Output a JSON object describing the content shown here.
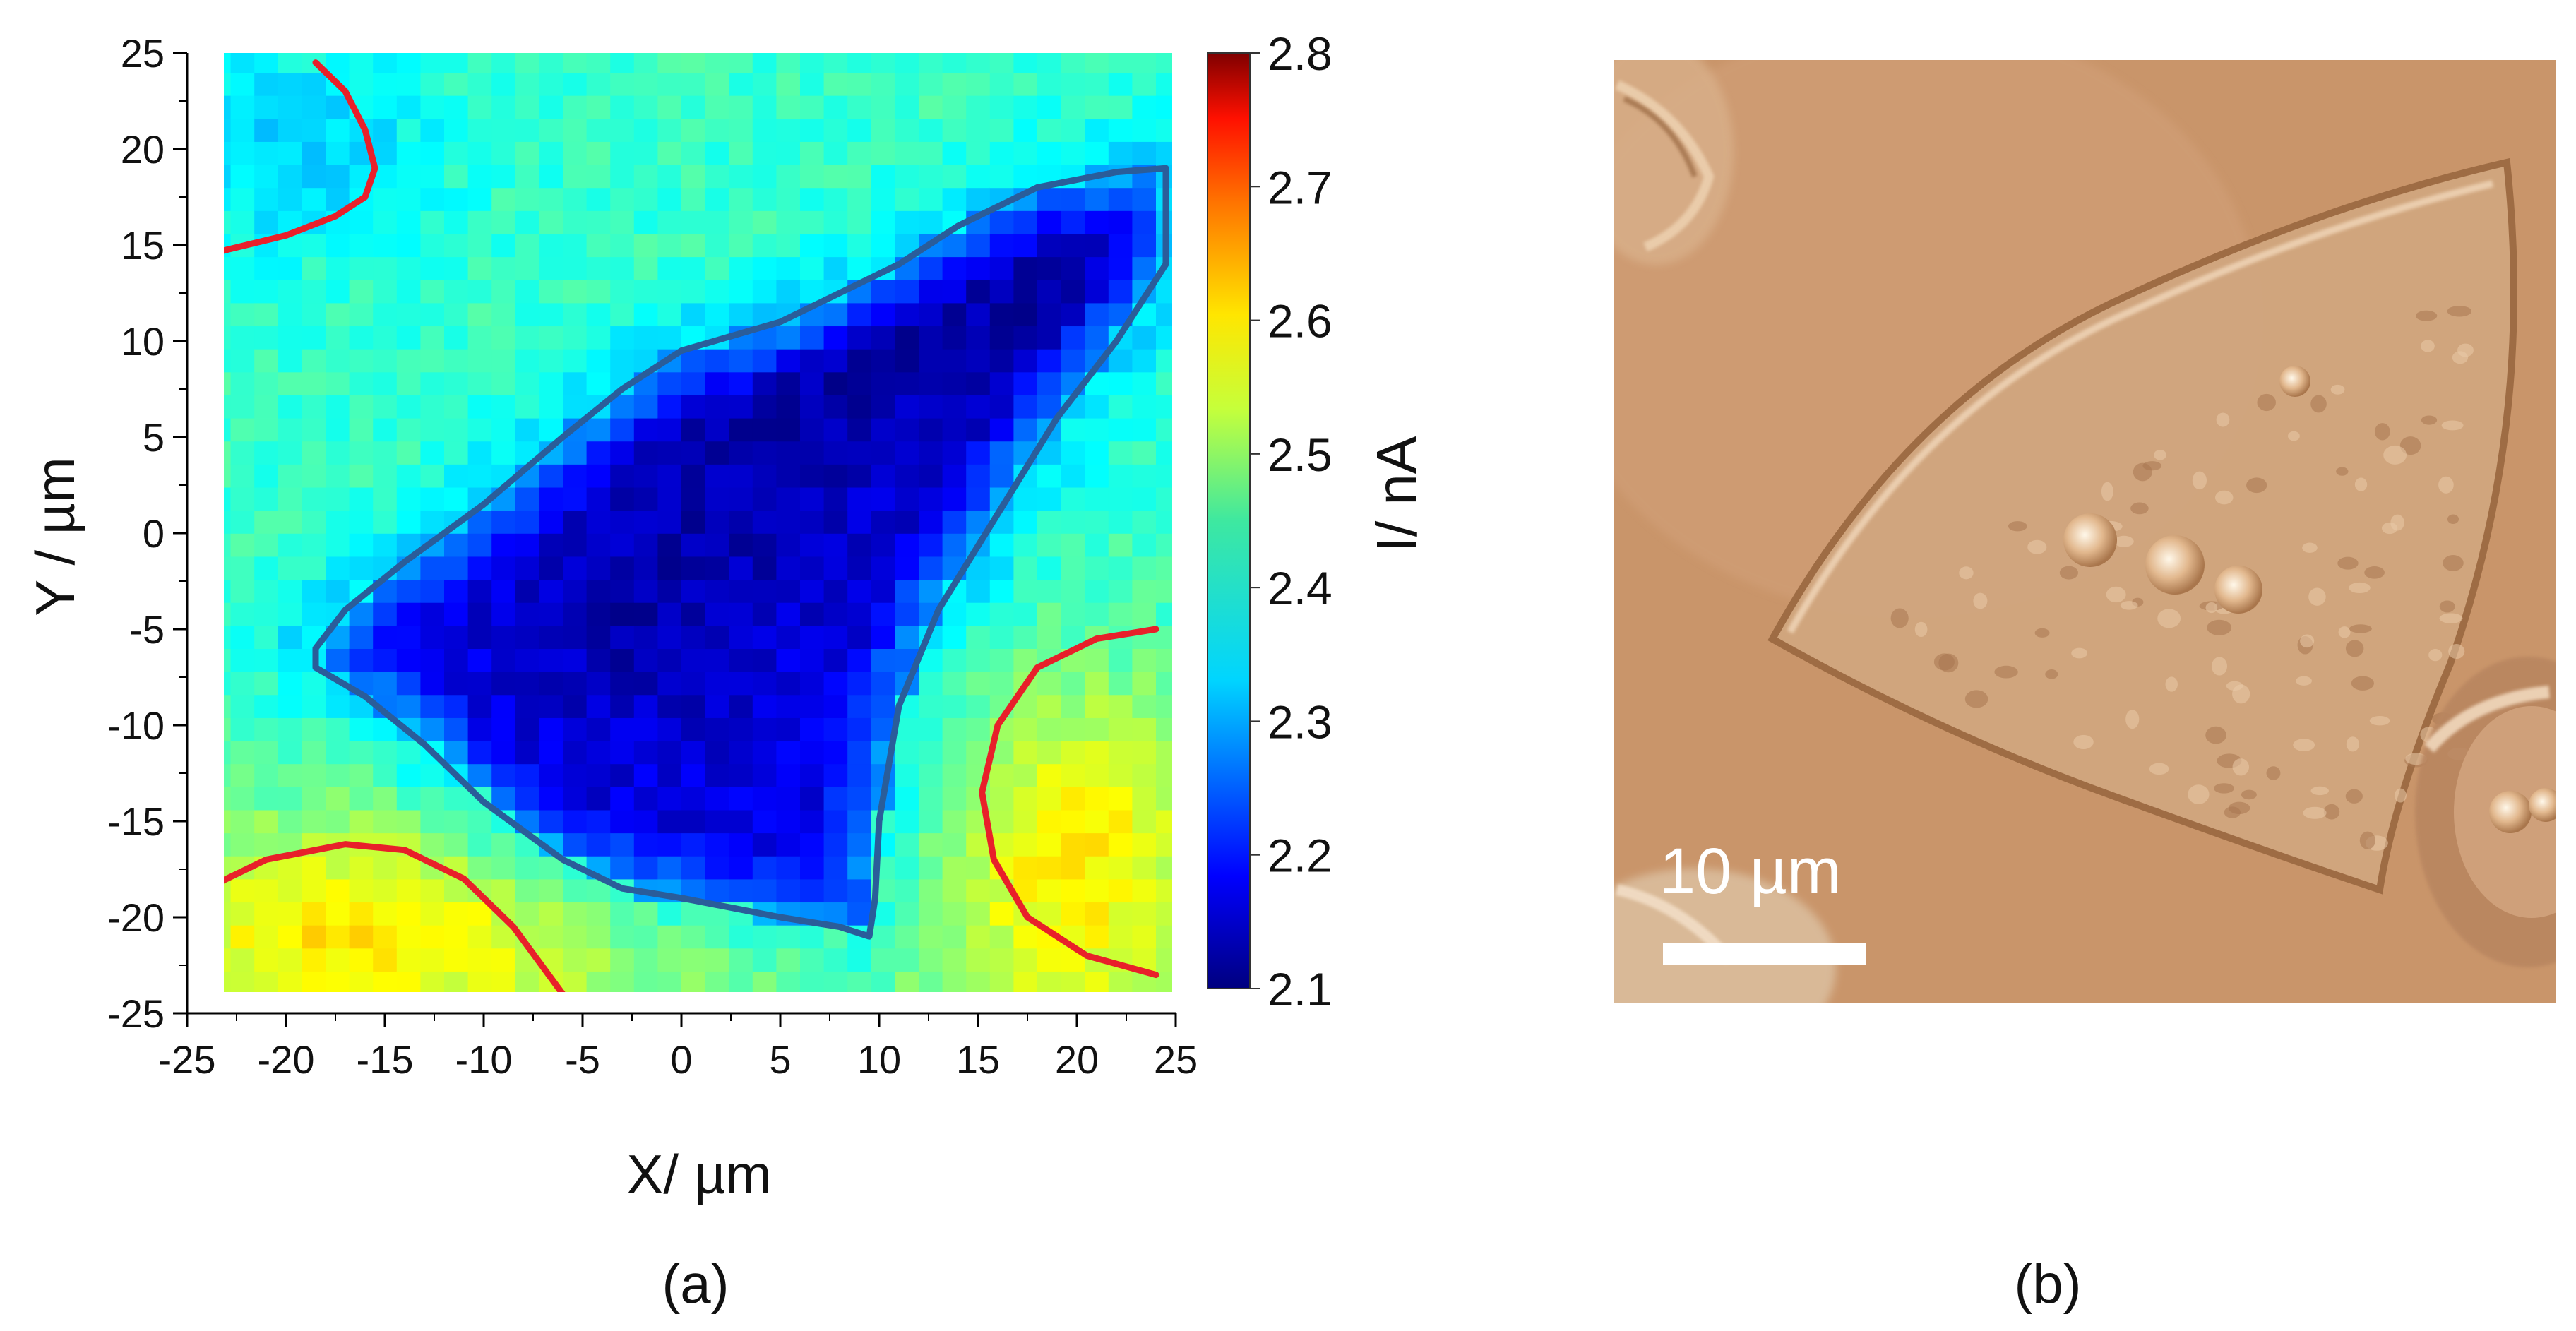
{
  "panels": {
    "a": {
      "label": "(a)",
      "chart_data": {
        "type": "heatmap",
        "xlabel": "X/ µm",
        "ylabel": "Y / µm",
        "xlim": [
          -25,
          25
        ],
        "ylim": [
          -25,
          25
        ],
        "x_ticks": [
          -25,
          -20,
          -15,
          -10,
          -5,
          0,
          5,
          10,
          15,
          20,
          25
        ],
        "y_ticks": [
          -25,
          -20,
          -15,
          -10,
          -5,
          0,
          5,
          10,
          15,
          20,
          25
        ],
        "grid": false,
        "colorbar": {
          "label": "I/ nA",
          "range": [
            2.1,
            2.8
          ],
          "ticks": [
            2.1,
            2.2,
            2.3,
            2.4,
            2.5,
            2.6,
            2.7,
            2.8
          ],
          "colormap": "jet"
        },
        "approx_field": {
          "description_values": {
            "background_nA": 2.4,
            "cell_interior_nA": 2.17,
            "cell_core_nA": 2.13,
            "neighbor_regions_nA": 2.5,
            "top_left_region_nA": 2.33
          },
          "cell_core_points": [
            [
              -2,
              -4
            ],
            [
              5,
              5
            ],
            [
              10,
              10
            ],
            [
              16,
              12
            ],
            [
              22,
              16
            ]
          ],
          "warm_regions": [
            {
              "center": [
                -16,
                -21
              ],
              "rx": 10,
              "ry": 5
            },
            {
              "center": [
                20,
                -16
              ],
              "rx": 6,
              "ry": 9
            }
          ]
        },
        "outlines": [
          {
            "color": "#2a5d9a",
            "points": [
              [
                -18.5,
                -6
              ],
              [
                -17,
                -4
              ],
              [
                -14,
                -1.5
              ],
              [
                -10,
                1.5
              ],
              [
                -6,
                5
              ],
              [
                -3,
                7.5
              ],
              [
                0,
                9.5
              ],
              [
                5,
                11
              ],
              [
                8,
                12.5
              ],
              [
                11,
                14
              ],
              [
                14,
                16
              ],
              [
                18,
                18
              ],
              [
                22,
                18.8
              ],
              [
                24.5,
                19
              ],
              [
                24.5,
                14
              ],
              [
                22,
                10
              ],
              [
                19,
                6
              ],
              [
                16,
                1
              ],
              [
                13,
                -4
              ],
              [
                11,
                -9
              ],
              [
                10,
                -15
              ],
              [
                9.8,
                -19
              ],
              [
                9.5,
                -21
              ],
              [
                8,
                -20.5
              ],
              [
                5,
                -20
              ],
              [
                0,
                -19
              ],
              [
                -3,
                -18.5
              ],
              [
                -6,
                -17
              ],
              [
                -10,
                -14
              ],
              [
                -13,
                -11
              ],
              [
                -16,
                -8.5
              ],
              [
                -18.5,
                -7
              ],
              [
                -18.5,
                -6
              ]
            ]
          },
          {
            "color": "#e8202a",
            "points": [
              [
                -18.5,
                24.5
              ],
              [
                -17,
                23
              ],
              [
                -16,
                21
              ],
              [
                -15.5,
                19
              ],
              [
                -16,
                17.5
              ],
              [
                -17.5,
                16.5
              ],
              [
                -20,
                15.5
              ],
              [
                -22,
                15
              ],
              [
                -24,
                14.5
              ]
            ]
          },
          {
            "color": "#e8202a",
            "points": [
              [
                -24,
                -18.5
              ],
              [
                -21,
                -17
              ],
              [
                -17,
                -16.2
              ],
              [
                -14,
                -16.5
              ],
              [
                -11,
                -18
              ],
              [
                -8.5,
                -20.5
              ],
              [
                -6,
                -24
              ]
            ]
          },
          {
            "color": "#e8202a",
            "points": [
              [
                24,
                -5
              ],
              [
                21,
                -5.5
              ],
              [
                18,
                -7
              ],
              [
                16,
                -10
              ],
              [
                15.2,
                -13.5
              ],
              [
                15.8,
                -17
              ],
              [
                17.5,
                -20
              ],
              [
                20.5,
                -22
              ],
              [
                24,
                -23
              ]
            ]
          }
        ]
      }
    },
    "b": {
      "label": "(b)",
      "image": {
        "background_color": "#c9956a",
        "scale_bar_text": "10 µm",
        "scale_bar_color": "#ffffff"
      }
    }
  }
}
